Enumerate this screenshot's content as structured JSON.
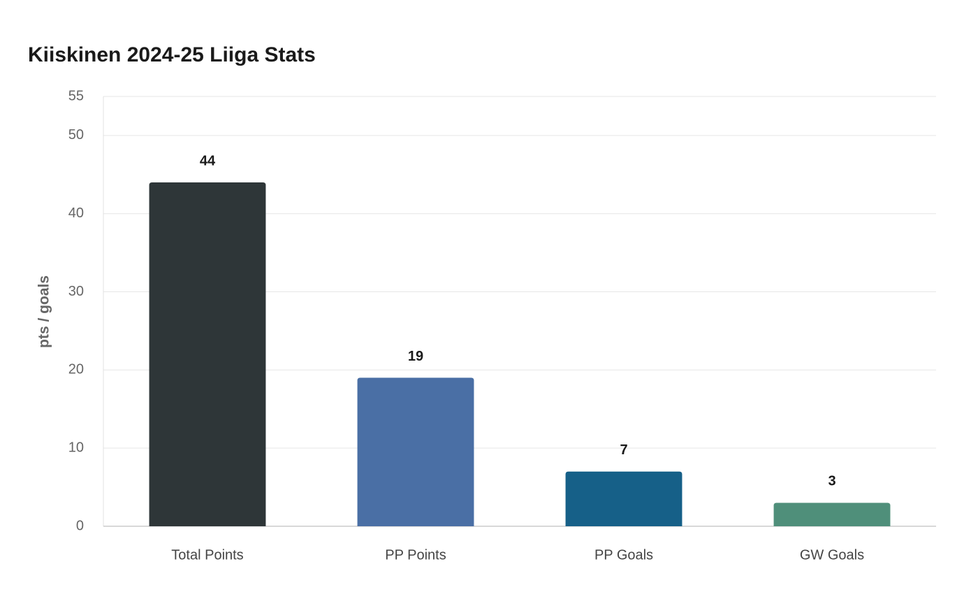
{
  "chart_data": {
    "type": "bar",
    "title": "Kiiskinen 2024-25 Liiga Stats",
    "y_label": "pts / goals",
    "categories": [
      "Total Points",
      "PP Points",
      "PP Goals",
      "GW Goals"
    ],
    "values": [
      44,
      19,
      7,
      3
    ],
    "colors": [
      "#2e3638",
      "#4a6fa5",
      "#166088",
      "#4f8f7a"
    ],
    "ylim": [
      0,
      55
    ],
    "yticks": [
      0,
      10,
      20,
      30,
      40,
      50,
      55
    ],
    "grid": true
  }
}
